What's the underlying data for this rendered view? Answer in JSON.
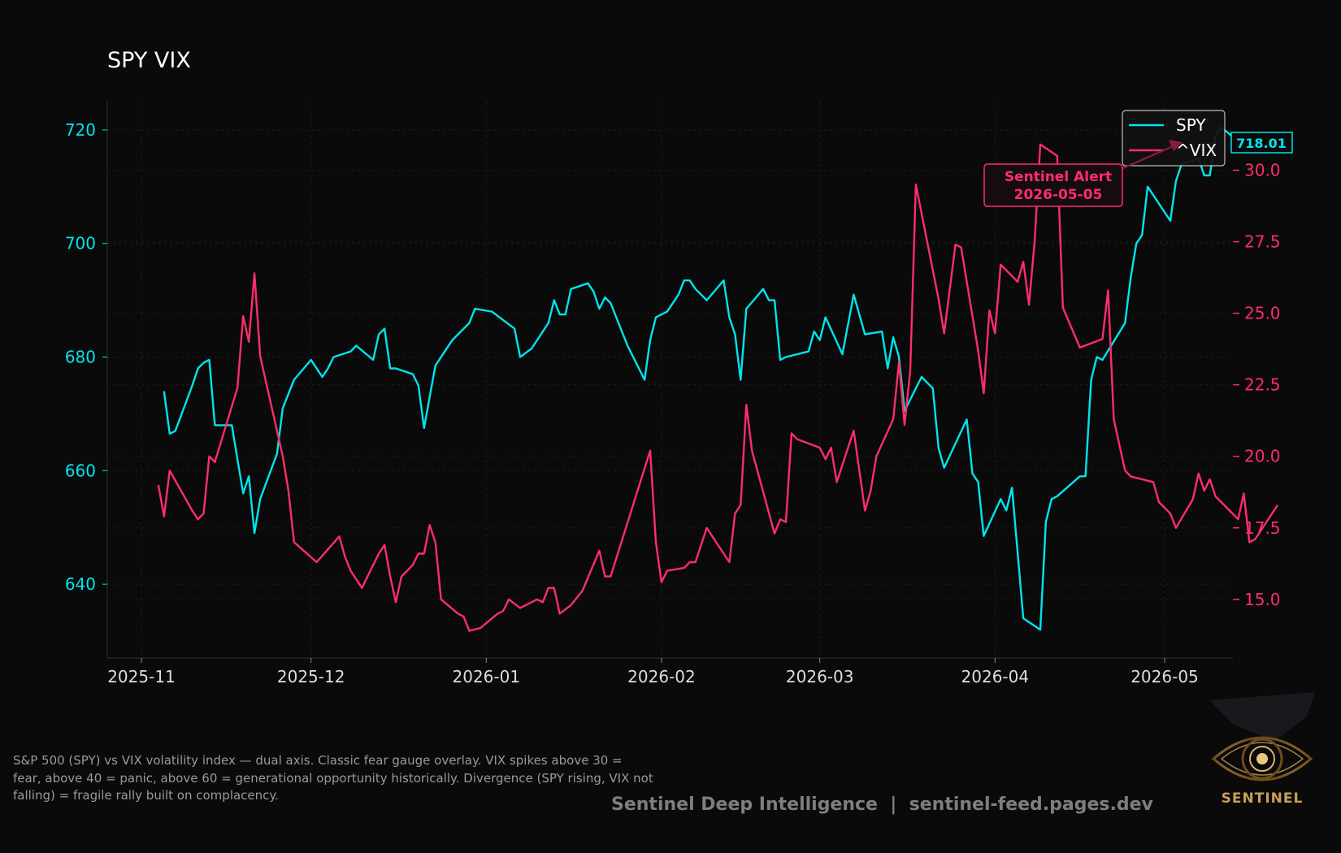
{
  "chart_data": {
    "type": "line",
    "title": "SPY VIX",
    "x_tick_labels": [
      "2025-11",
      "2025-12",
      "2026-01",
      "2026-02",
      "2026-03",
      "2026-04",
      "2026-05"
    ],
    "y_left_ticks": [
      "640",
      "660",
      "680",
      "700",
      "720"
    ],
    "y_right_ticks": [
      "15.0",
      "17.5",
      "20.0",
      "22.5",
      "25.0",
      "27.5",
      "30.0"
    ],
    "ylim_left": [
      627,
      725
    ],
    "ylim_right": [
      12.95,
      32.4
    ],
    "grid": true,
    "legend_position": "top-right",
    "last_price_label": "718.01",
    "annotation": {
      "line1": "Sentinel Alert",
      "line2": "2026-05-05"
    },
    "series": [
      {
        "name": "SPY",
        "color": "#00e5ee",
        "axis": "left",
        "points": [
          [
            "2025-11-05",
            674
          ],
          [
            "2025-11-06",
            666.5
          ],
          [
            "2025-11-07",
            667
          ],
          [
            "2025-11-10",
            675
          ],
          [
            "2025-11-11",
            678
          ],
          [
            "2025-11-12",
            679
          ],
          [
            "2025-11-13",
            679.5
          ],
          [
            "2025-11-14",
            668
          ],
          [
            "2025-11-17",
            668
          ],
          [
            "2025-11-18",
            662
          ],
          [
            "2025-11-19",
            656
          ],
          [
            "2025-11-20",
            659
          ],
          [
            "2025-11-21",
            649
          ],
          [
            "2025-11-22",
            655
          ],
          [
            "2025-11-25",
            663
          ],
          [
            "2025-11-26",
            671
          ],
          [
            "2025-11-28",
            676
          ],
          [
            "2025-12-01",
            679.5
          ],
          [
            "2025-12-03",
            676.5
          ],
          [
            "2025-12-04",
            678
          ],
          [
            "2025-12-05",
            680
          ],
          [
            "2025-12-08",
            681
          ],
          [
            "2025-12-09",
            682
          ],
          [
            "2025-12-12",
            679.5
          ],
          [
            "2025-12-13",
            684
          ],
          [
            "2025-12-14",
            685
          ],
          [
            "2025-12-15",
            678
          ],
          [
            "2025-12-16",
            678
          ],
          [
            "2025-12-19",
            677
          ],
          [
            "2025-12-20",
            675
          ],
          [
            "2025-12-21",
            667.5
          ],
          [
            "2025-12-22",
            673
          ],
          [
            "2025-12-23",
            678.5
          ],
          [
            "2025-12-26",
            683
          ],
          [
            "2025-12-29",
            686
          ],
          [
            "2025-12-30",
            688.5
          ],
          [
            "2026-01-02",
            688
          ],
          [
            "2026-01-06",
            685
          ],
          [
            "2026-01-07",
            680
          ],
          [
            "2026-01-09",
            681.5
          ],
          [
            "2026-01-12",
            686
          ],
          [
            "2026-01-13",
            690
          ],
          [
            "2026-01-14",
            687.5
          ],
          [
            "2026-01-15",
            687.5
          ],
          [
            "2026-01-16",
            692
          ],
          [
            "2026-01-19",
            693
          ],
          [
            "2026-01-20",
            691.5
          ],
          [
            "2026-01-21",
            688.5
          ],
          [
            "2026-01-22",
            690.5
          ],
          [
            "2026-01-23",
            689.5
          ],
          [
            "2026-01-26",
            682
          ],
          [
            "2026-01-29",
            676
          ],
          [
            "2026-01-30",
            683
          ],
          [
            "2026-01-31",
            687
          ],
          [
            "2026-02-02",
            688
          ],
          [
            "2026-02-04",
            691
          ],
          [
            "2026-02-05",
            693.5
          ],
          [
            "2026-02-06",
            693.5
          ],
          [
            "2026-02-07",
            692
          ],
          [
            "2026-02-09",
            690
          ],
          [
            "2026-02-12",
            693.5
          ],
          [
            "2026-02-13",
            687
          ],
          [
            "2026-02-14",
            684
          ],
          [
            "2026-02-15",
            676
          ],
          [
            "2026-02-16",
            688.5
          ],
          [
            "2026-02-19",
            692
          ],
          [
            "2026-02-20",
            690
          ],
          [
            "2026-02-21",
            690
          ],
          [
            "2026-02-22",
            679.5
          ],
          [
            "2026-02-23",
            680
          ],
          [
            "2026-02-27",
            681
          ],
          [
            "2026-02-28",
            684.5
          ],
          [
            "2026-03-01",
            683
          ],
          [
            "2026-03-02",
            687
          ],
          [
            "2026-03-05",
            680.5
          ],
          [
            "2026-03-07",
            691
          ],
          [
            "2026-03-09",
            684
          ],
          [
            "2026-03-12",
            684.5
          ],
          [
            "2026-03-13",
            678
          ],
          [
            "2026-03-14",
            683.5
          ],
          [
            "2026-03-15",
            680
          ],
          [
            "2026-03-16",
            670.5
          ],
          [
            "2026-03-19",
            676.5
          ],
          [
            "2026-03-21",
            674.5
          ],
          [
            "2026-03-22",
            664
          ],
          [
            "2026-03-23",
            660.5
          ],
          [
            "2026-03-27",
            669
          ],
          [
            "2026-03-28",
            659.5
          ],
          [
            "2026-03-29",
            658
          ],
          [
            "2026-03-30",
            648.5
          ],
          [
            "2026-04-02",
            655
          ],
          [
            "2026-04-03",
            653
          ],
          [
            "2026-04-04",
            657
          ],
          [
            "2026-04-06",
            634
          ],
          [
            "2026-04-09",
            632
          ],
          [
            "2026-04-10",
            651
          ],
          [
            "2026-04-11",
            655
          ],
          [
            "2026-04-12",
            655.5
          ],
          [
            "2026-04-16",
            659
          ],
          [
            "2026-04-17",
            659
          ],
          [
            "2026-04-18",
            676
          ],
          [
            "2026-04-19",
            680
          ],
          [
            "2026-04-20",
            679.5
          ],
          [
            "2026-04-24",
            686
          ],
          [
            "2026-04-25",
            694
          ],
          [
            "2026-04-26",
            700
          ],
          [
            "2026-04-27",
            701.5
          ],
          [
            "2026-04-28",
            710
          ],
          [
            "2026-05-02",
            704
          ],
          [
            "2026-05-03",
            711
          ],
          [
            "2026-05-04",
            714
          ],
          [
            "2026-05-07",
            715
          ],
          [
            "2026-05-08",
            712
          ],
          [
            "2026-05-09",
            712
          ],
          [
            "2026-05-10",
            719
          ],
          [
            "2026-05-11",
            720.5
          ],
          [
            "2026-05-14",
            718
          ]
        ]
      },
      {
        "name": "^VIX",
        "color": "#ff2d6b",
        "axis": "right",
        "points": [
          [
            "2025-11-04",
            19
          ],
          [
            "2025-11-05",
            17.9
          ],
          [
            "2025-11-06",
            19.5
          ],
          [
            "2025-11-10",
            18.1
          ],
          [
            "2025-11-11",
            17.8
          ],
          [
            "2025-11-12",
            18
          ],
          [
            "2025-11-13",
            20
          ],
          [
            "2025-11-14",
            19.8
          ],
          [
            "2025-11-18",
            22.4
          ],
          [
            "2025-11-19",
            24.9
          ],
          [
            "2025-11-20",
            24
          ],
          [
            "2025-11-21",
            26.4
          ],
          [
            "2025-11-22",
            23.5
          ],
          [
            "2025-11-26",
            20
          ],
          [
            "2025-11-27",
            18.8
          ],
          [
            "2025-11-28",
            17
          ],
          [
            "2025-12-02",
            16.3
          ],
          [
            "2025-12-06",
            17.2
          ],
          [
            "2025-12-07",
            16.5
          ],
          [
            "2025-12-08",
            16
          ],
          [
            "2025-12-10",
            15.4
          ],
          [
            "2025-12-13",
            16.6
          ],
          [
            "2025-12-14",
            16.9
          ],
          [
            "2025-12-15",
            15.8
          ],
          [
            "2025-12-16",
            14.9
          ],
          [
            "2025-12-17",
            15.8
          ],
          [
            "2025-12-19",
            16.2
          ],
          [
            "2025-12-20",
            16.6
          ],
          [
            "2025-12-21",
            16.6
          ],
          [
            "2025-12-22",
            17.6
          ],
          [
            "2025-12-23",
            17
          ],
          [
            "2025-12-24",
            15
          ],
          [
            "2025-12-27",
            14.5
          ],
          [
            "2025-12-28",
            14.4
          ],
          [
            "2025-12-29",
            13.9
          ],
          [
            "2025-12-31",
            14
          ],
          [
            "2026-01-03",
            14.5
          ],
          [
            "2026-01-04",
            14.6
          ],
          [
            "2026-01-05",
            15
          ],
          [
            "2026-01-07",
            14.7
          ],
          [
            "2026-01-10",
            15
          ],
          [
            "2026-01-11",
            14.9
          ],
          [
            "2026-01-12",
            15.4
          ],
          [
            "2026-01-13",
            15.4
          ],
          [
            "2026-01-14",
            14.5
          ],
          [
            "2026-01-16",
            14.8
          ],
          [
            "2026-01-18",
            15.3
          ],
          [
            "2026-01-21",
            16.7
          ],
          [
            "2026-01-22",
            15.8
          ],
          [
            "2026-01-23",
            15.8
          ],
          [
            "2026-01-30",
            20.2
          ],
          [
            "2026-01-31",
            17
          ],
          [
            "2026-02-01",
            15.6
          ],
          [
            "2026-02-02",
            16
          ],
          [
            "2026-02-05",
            16.1
          ],
          [
            "2026-02-06",
            16.3
          ],
          [
            "2026-02-07",
            16.3
          ],
          [
            "2026-02-09",
            17.5
          ],
          [
            "2026-02-13",
            16.3
          ],
          [
            "2026-02-14",
            18
          ],
          [
            "2026-02-15",
            18.3
          ],
          [
            "2026-02-16",
            21.8
          ],
          [
            "2026-02-17",
            20.2
          ],
          [
            "2026-02-21",
            17.3
          ],
          [
            "2026-02-22",
            17.8
          ],
          [
            "2026-02-23",
            17.7
          ],
          [
            "2026-02-24",
            20.8
          ],
          [
            "2026-02-25",
            20.6
          ],
          [
            "2026-03-01",
            20.3
          ],
          [
            "2026-03-02",
            19.9
          ],
          [
            "2026-03-03",
            20.3
          ],
          [
            "2026-03-04",
            19.1
          ],
          [
            "2026-03-07",
            20.9
          ],
          [
            "2026-03-09",
            18.1
          ],
          [
            "2026-03-10",
            18.8
          ],
          [
            "2026-03-11",
            20
          ],
          [
            "2026-03-14",
            21.3
          ],
          [
            "2026-03-15",
            23.3
          ],
          [
            "2026-03-16",
            21.1
          ],
          [
            "2026-03-17",
            23
          ],
          [
            "2026-03-18",
            29.5
          ],
          [
            "2026-03-22",
            25.5
          ],
          [
            "2026-03-23",
            24.3
          ],
          [
            "2026-03-25",
            27.4
          ],
          [
            "2026-03-26",
            27.3
          ],
          [
            "2026-03-29",
            23.7
          ],
          [
            "2026-03-30",
            22.2
          ],
          [
            "2026-03-31",
            25.1
          ],
          [
            "2026-04-01",
            24.3
          ],
          [
            "2026-04-02",
            26.7
          ],
          [
            "2026-04-05",
            26.1
          ],
          [
            "2026-04-06",
            26.8
          ],
          [
            "2026-04-07",
            25.3
          ],
          [
            "2026-04-08",
            27.5
          ],
          [
            "2026-04-09",
            30.9
          ],
          [
            "2026-04-12",
            30.5
          ],
          [
            "2026-04-13",
            25.2
          ],
          [
            "2026-04-16",
            23.8
          ],
          [
            "2026-04-20",
            24.1
          ],
          [
            "2026-04-21",
            25.8
          ],
          [
            "2026-04-22",
            21.3
          ],
          [
            "2026-04-24",
            19.5
          ],
          [
            "2026-04-25",
            19.3
          ],
          [
            "2026-04-29",
            19.1
          ],
          [
            "2026-04-30",
            18.4
          ],
          [
            "2026-05-02",
            18
          ],
          [
            "2026-05-03",
            17.5
          ],
          [
            "2026-05-06",
            18.5
          ],
          [
            "2026-05-07",
            19.4
          ],
          [
            "2026-05-08",
            18.8
          ],
          [
            "2026-05-09",
            19.2
          ],
          [
            "2026-05-10",
            18.6
          ],
          [
            "2026-05-13",
            18
          ],
          [
            "2026-05-14",
            17.8
          ],
          [
            "2026-05-15",
            18.7
          ],
          [
            "2026-05-16",
            17
          ],
          [
            "2026-05-17",
            17.1
          ],
          [
            "2026-05-21",
            18.3
          ]
        ]
      }
    ]
  },
  "caption_lines": [
    "S&P 500 (SPY) vs VIX volatility index — dual axis. Classic fear gauge overlay. VIX spikes above 30 =",
    "fear, above 40 = panic, above 60 = generational opportunity historically. Divergence (SPY rising, VIX not",
    "falling) = fragile rally built on complacency."
  ],
  "footer": "Sentinel Deep Intelligence  |  sentinel-feed.pages.dev",
  "logo_text": "SENTINEL",
  "colors": {
    "background": "#0a0a0a",
    "spy": "#00e5ee",
    "vix": "#ff2d6b",
    "text": "#dddddd",
    "muted": "#9a9a9a"
  }
}
